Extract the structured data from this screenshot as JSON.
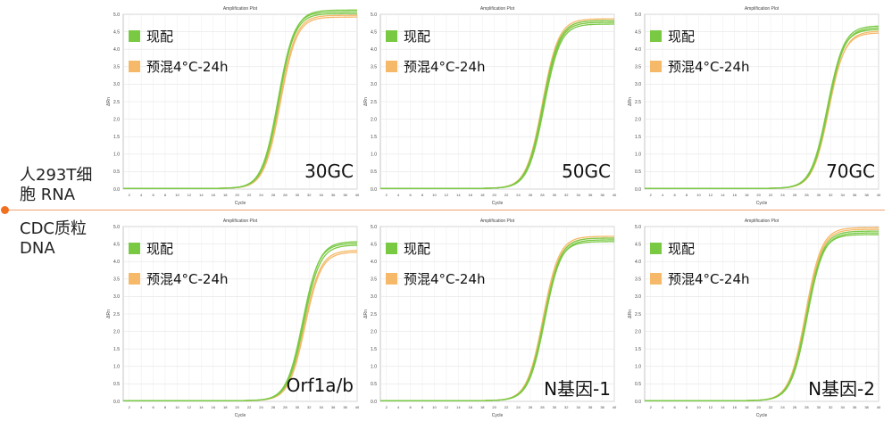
{
  "side_labels": [
    "人293T细\n胞 RNA",
    "CDC质粒\nDNA"
  ],
  "chart_data": [
    {
      "type": "line",
      "title": "Amplification Plot",
      "xlabel": "Cycle",
      "ylabel": "ΔRn",
      "sample_label": "30GC",
      "ylim": [
        0,
        5.0
      ],
      "yticks": [
        "0.0",
        "0.5",
        "1.0",
        "1.5",
        "2.0",
        "2.5",
        "3.0",
        "3.5",
        "4.0",
        "4.5",
        "5.0"
      ],
      "xlim": [
        1,
        40
      ],
      "xticks": [
        "2",
        "4",
        "6",
        "8",
        "10",
        "12",
        "14",
        "16",
        "18",
        "20",
        "22",
        "24",
        "26",
        "28",
        "30",
        "32",
        "34",
        "36",
        "38",
        "40"
      ],
      "legend_location": "top-left",
      "series": [
        {
          "name": "现配",
          "color": "#7ac943",
          "curves": [
            {
              "plateau": 5.1,
              "midpoint": 27.0
            },
            {
              "plateau": 5.0,
              "midpoint": 26.9
            },
            {
              "plateau": 5.05,
              "midpoint": 26.8
            }
          ]
        },
        {
          "name": "预混4°C-24h",
          "color": "#f5b969",
          "curves": [
            {
              "plateau": 4.95,
              "midpoint": 27.1
            },
            {
              "plateau": 4.9,
              "midpoint": 27.2
            }
          ]
        }
      ]
    },
    {
      "type": "line",
      "title": "Amplification Plot",
      "xlabel": "Cycle",
      "ylabel": "ΔRn",
      "sample_label": "50GC",
      "ylim": [
        0,
        5.0
      ],
      "yticks": [
        "0.0",
        "0.5",
        "1.0",
        "1.5",
        "2.0",
        "2.5",
        "3.0",
        "3.5",
        "4.0",
        "4.5",
        "5.0"
      ],
      "xlim": [
        1,
        40
      ],
      "xticks": [
        "2",
        "4",
        "6",
        "8",
        "10",
        "12",
        "14",
        "16",
        "18",
        "20",
        "22",
        "24",
        "26",
        "28",
        "30",
        "32",
        "34",
        "36",
        "38",
        "40"
      ],
      "legend_location": "top-left",
      "series": [
        {
          "name": "现配",
          "color": "#7ac943",
          "curves": [
            {
              "plateau": 4.75,
              "midpoint": 28.2
            },
            {
              "plateau": 4.8,
              "midpoint": 28.1
            },
            {
              "plateau": 4.7,
              "midpoint": 28.3
            }
          ]
        },
        {
          "name": "预混4°C-24h",
          "color": "#f5b969",
          "curves": [
            {
              "plateau": 4.85,
              "midpoint": 28.0
            },
            {
              "plateau": 4.8,
              "midpoint": 28.2
            }
          ]
        }
      ]
    },
    {
      "type": "line",
      "title": "Amplification Plot",
      "xlabel": "Cycle",
      "ylabel": "ΔRn",
      "sample_label": "70GC",
      "ylim": [
        0,
        5.0
      ],
      "yticks": [
        "0.0",
        "0.5",
        "1.0",
        "1.5",
        "2.0",
        "2.5",
        "3.0",
        "3.5",
        "4.0",
        "4.5",
        "5.0"
      ],
      "xlim": [
        1,
        40
      ],
      "xticks": [
        "2",
        "4",
        "6",
        "8",
        "10",
        "12",
        "14",
        "16",
        "18",
        "20",
        "22",
        "24",
        "26",
        "28",
        "30",
        "32",
        "34",
        "36",
        "38",
        "40"
      ],
      "legend_location": "top-left",
      "series": [
        {
          "name": "现配",
          "color": "#7ac943",
          "curves": [
            {
              "plateau": 4.65,
              "midpoint": 31.5
            },
            {
              "plateau": 4.6,
              "midpoint": 31.6
            },
            {
              "plateau": 4.55,
              "midpoint": 31.4
            }
          ]
        },
        {
          "name": "预混4°C-24h",
          "color": "#f5b969",
          "curves": [
            {
              "plateau": 4.5,
              "midpoint": 31.7
            },
            {
              "plateau": 4.45,
              "midpoint": 31.6
            }
          ]
        }
      ]
    },
    {
      "type": "line",
      "title": "Amplification Plot",
      "xlabel": "Cycle",
      "ylabel": "ΔRn",
      "sample_label": "Orf1a/b",
      "ylim": [
        0,
        5.0
      ],
      "yticks": [
        "0.0",
        "0.5",
        "1.0",
        "1.5",
        "2.0",
        "2.5",
        "3.0",
        "3.5",
        "4.0",
        "4.5",
        "5.0"
      ],
      "xlim": [
        1,
        40
      ],
      "xticks": [
        "2",
        "4",
        "6",
        "8",
        "10",
        "12",
        "14",
        "16",
        "18",
        "20",
        "22",
        "24",
        "26",
        "28",
        "30",
        "32",
        "34",
        "36",
        "38",
        "40"
      ],
      "legend_location": "top-left",
      "series": [
        {
          "name": "现配",
          "color": "#7ac943",
          "curves": [
            {
              "plateau": 4.55,
              "midpoint": 31.0
            },
            {
              "plateau": 4.45,
              "midpoint": 31.1
            },
            {
              "plateau": 4.5,
              "midpoint": 30.9
            }
          ]
        },
        {
          "name": "预混4°C-24h",
          "color": "#f5b969",
          "curves": [
            {
              "plateau": 4.3,
              "midpoint": 31.2
            },
            {
              "plateau": 4.25,
              "midpoint": 31.3
            }
          ]
        }
      ]
    },
    {
      "type": "line",
      "title": "Amplification Plot",
      "xlabel": "Cycle",
      "ylabel": "ΔRn",
      "sample_label": "N基因-1",
      "ylim": [
        0,
        5.0
      ],
      "yticks": [
        "0.0",
        "0.5",
        "1.0",
        "1.5",
        "2.0",
        "2.5",
        "3.0",
        "3.5",
        "4.0",
        "4.5",
        "5.0"
      ],
      "xlim": [
        1,
        40
      ],
      "xticks": [
        "2",
        "4",
        "6",
        "8",
        "10",
        "12",
        "14",
        "16",
        "18",
        "20",
        "22",
        "24",
        "26",
        "28",
        "30",
        "32",
        "34",
        "36",
        "38",
        "40"
      ],
      "legend_location": "top-left",
      "series": [
        {
          "name": "现配",
          "color": "#7ac943",
          "curves": [
            {
              "plateau": 4.65,
              "midpoint": 28.3
            },
            {
              "plateau": 4.6,
              "midpoint": 28.4
            },
            {
              "plateau": 4.55,
              "midpoint": 28.2
            }
          ]
        },
        {
          "name": "预混4°C-24h",
          "color": "#f5b969",
          "curves": [
            {
              "plateau": 4.7,
              "midpoint": 28.1
            },
            {
              "plateau": 4.65,
              "midpoint": 28.2
            }
          ]
        }
      ]
    },
    {
      "type": "line",
      "title": "Amplification Plot",
      "xlabel": "Cycle",
      "ylabel": "ΔRn",
      "sample_label": "N基因-2",
      "ylim": [
        0,
        5.0
      ],
      "yticks": [
        "0.0",
        "0.5",
        "1.0",
        "1.5",
        "2.0",
        "2.5",
        "3.0",
        "3.5",
        "4.0",
        "4.5",
        "5.0"
      ],
      "xlim": [
        1,
        40
      ],
      "xticks": [
        "2",
        "4",
        "6",
        "8",
        "10",
        "12",
        "14",
        "16",
        "18",
        "20",
        "22",
        "24",
        "26",
        "28",
        "30",
        "32",
        "34",
        "36",
        "38",
        "40"
      ],
      "legend_location": "top-left",
      "series": [
        {
          "name": "现配",
          "color": "#7ac943",
          "curves": [
            {
              "plateau": 4.85,
              "midpoint": 28.0
            },
            {
              "plateau": 4.8,
              "midpoint": 28.1
            },
            {
              "plateau": 4.75,
              "midpoint": 27.9
            }
          ]
        },
        {
          "name": "预混4°C-24h",
          "color": "#f5b969",
          "curves": [
            {
              "plateau": 4.95,
              "midpoint": 27.8
            },
            {
              "plateau": 4.9,
              "midpoint": 27.9
            }
          ]
        }
      ]
    }
  ]
}
